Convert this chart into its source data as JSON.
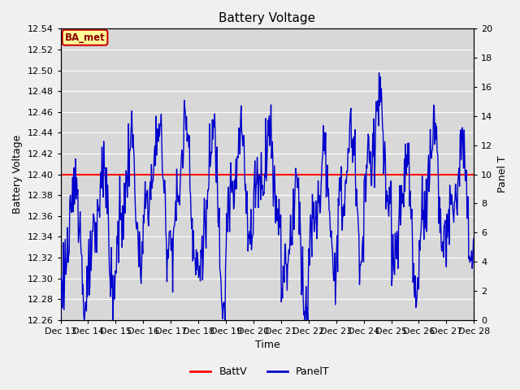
{
  "title": "Battery Voltage",
  "xlabel": "Time",
  "ylabel_left": "Battery Voltage",
  "ylabel_right": "Panel T",
  "batt_v": 12.4,
  "ylim_left": [
    12.26,
    12.54
  ],
  "ylim_right": [
    0,
    20
  ],
  "yticks_left": [
    12.26,
    12.28,
    12.3,
    12.32,
    12.34,
    12.36,
    12.38,
    12.4,
    12.42,
    12.44,
    12.46,
    12.48,
    12.5,
    12.52,
    12.54
  ],
  "yticks_right": [
    0,
    2,
    4,
    6,
    8,
    10,
    12,
    14,
    16,
    18,
    20
  ],
  "xtick_labels": [
    "Dec 13",
    "Dec 14",
    "Dec 15",
    "Dec 16",
    "Dec 17",
    "Dec 18",
    "Dec 19",
    "Dec 20",
    "Dec 21",
    "Dec 22",
    "Dec 23",
    "Dec 24",
    "Dec 25",
    "Dec 26",
    "Dec 27",
    "Dec 28"
  ],
  "background_color": "#d8d8d8",
  "fig_background": "#f0f0f0",
  "line_color_batt": "#ff0000",
  "line_color_panel": "#0000cc",
  "annotation_text": "BA_met",
  "annotation_bg": "#ffff99",
  "annotation_border": "#cc0000"
}
